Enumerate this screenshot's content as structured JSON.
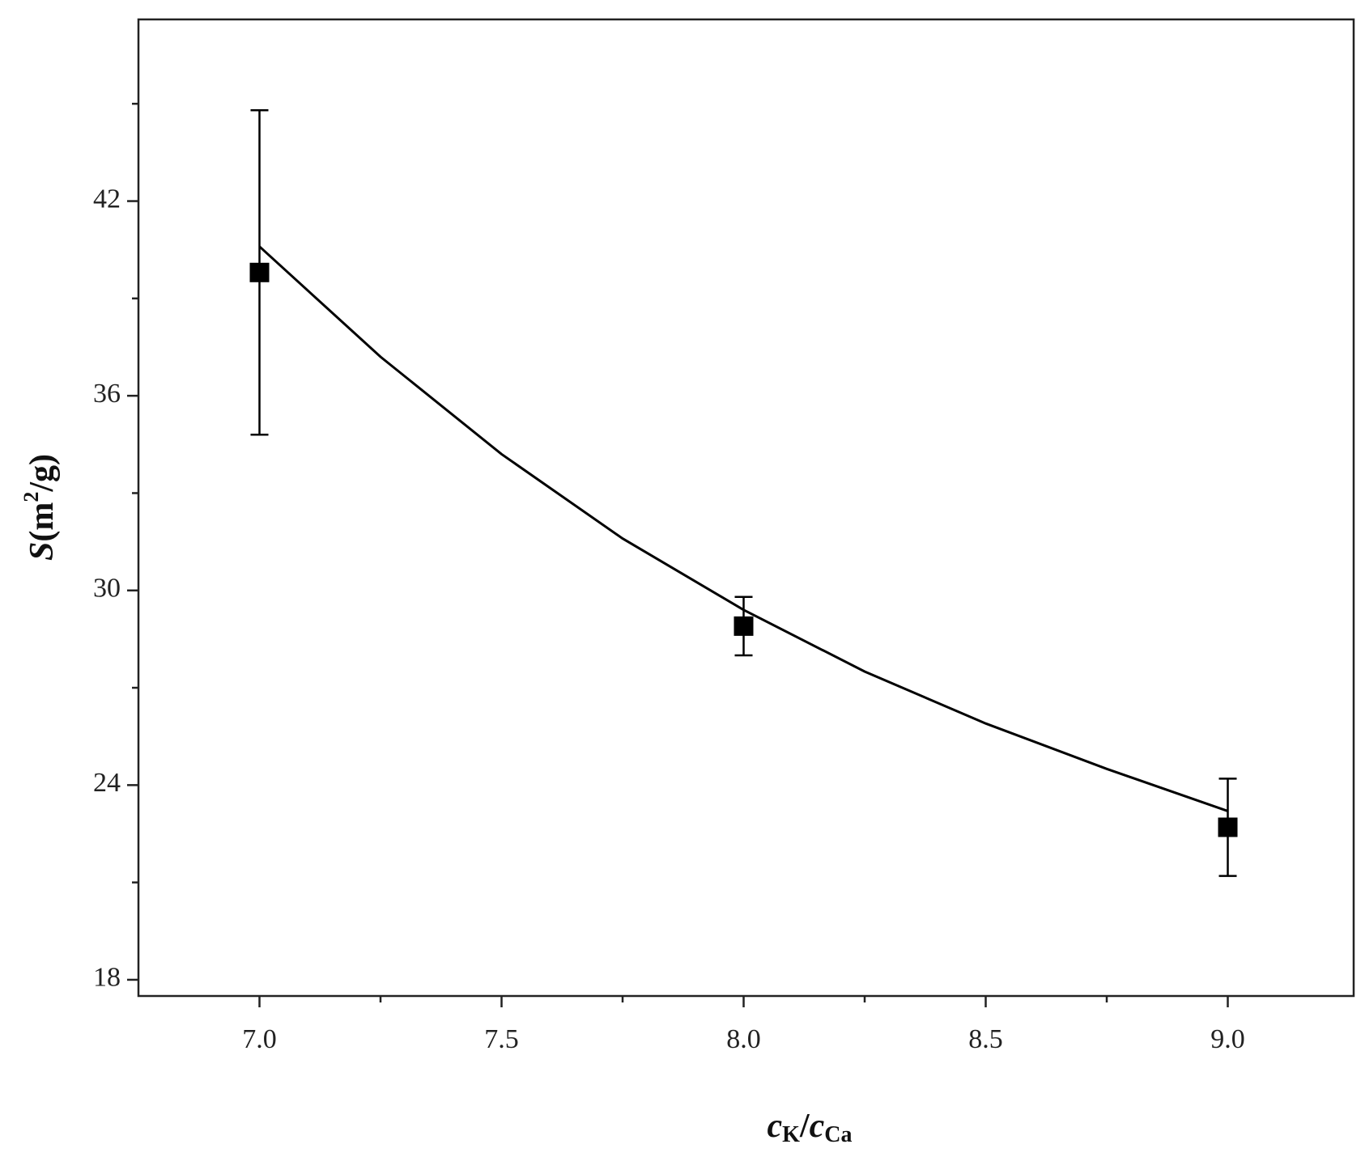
{
  "chart_data": {
    "type": "scatter",
    "xlabel": [
      "c",
      "K",
      "/",
      "c",
      "Ca"
    ],
    "ylabel": [
      "S",
      "(m",
      "2",
      "/g)"
    ],
    "xlim": [
      6.75,
      9.26
    ],
    "xticks": [
      {
        "value": 7,
        "label": "7.0"
      },
      7.5,
      {
        "value": 8,
        "label": "8.0"
      },
      8.5,
      {
        "value": 9,
        "label": "9.0"
      }
    ],
    "xminorticks": [
      7.25,
      7.75,
      8.25,
      8.75
    ],
    "ylim": [
      17.5,
      47.6
    ],
    "yticks": [
      18,
      24,
      30,
      36,
      42
    ],
    "yminorticks": [
      21,
      27,
      33,
      39,
      45
    ],
    "series": [
      {
        "kind": "points",
        "color": "#000000",
        "x": [
          7.0,
          8.0,
          9.0
        ],
        "values": [
          39.8,
          28.9,
          22.7
        ],
        "errors": [
          5.0,
          0.9,
          1.5
        ]
      },
      {
        "kind": "fit",
        "color": "#000000",
        "x": [
          7.0,
          7.25,
          7.5,
          7.75,
          8.0,
          8.25,
          8.5,
          8.75,
          9.0
        ],
        "values": [
          40.6,
          37.2,
          34.2,
          31.6,
          29.4,
          27.5,
          25.9,
          24.5,
          23.2
        ]
      }
    ]
  }
}
